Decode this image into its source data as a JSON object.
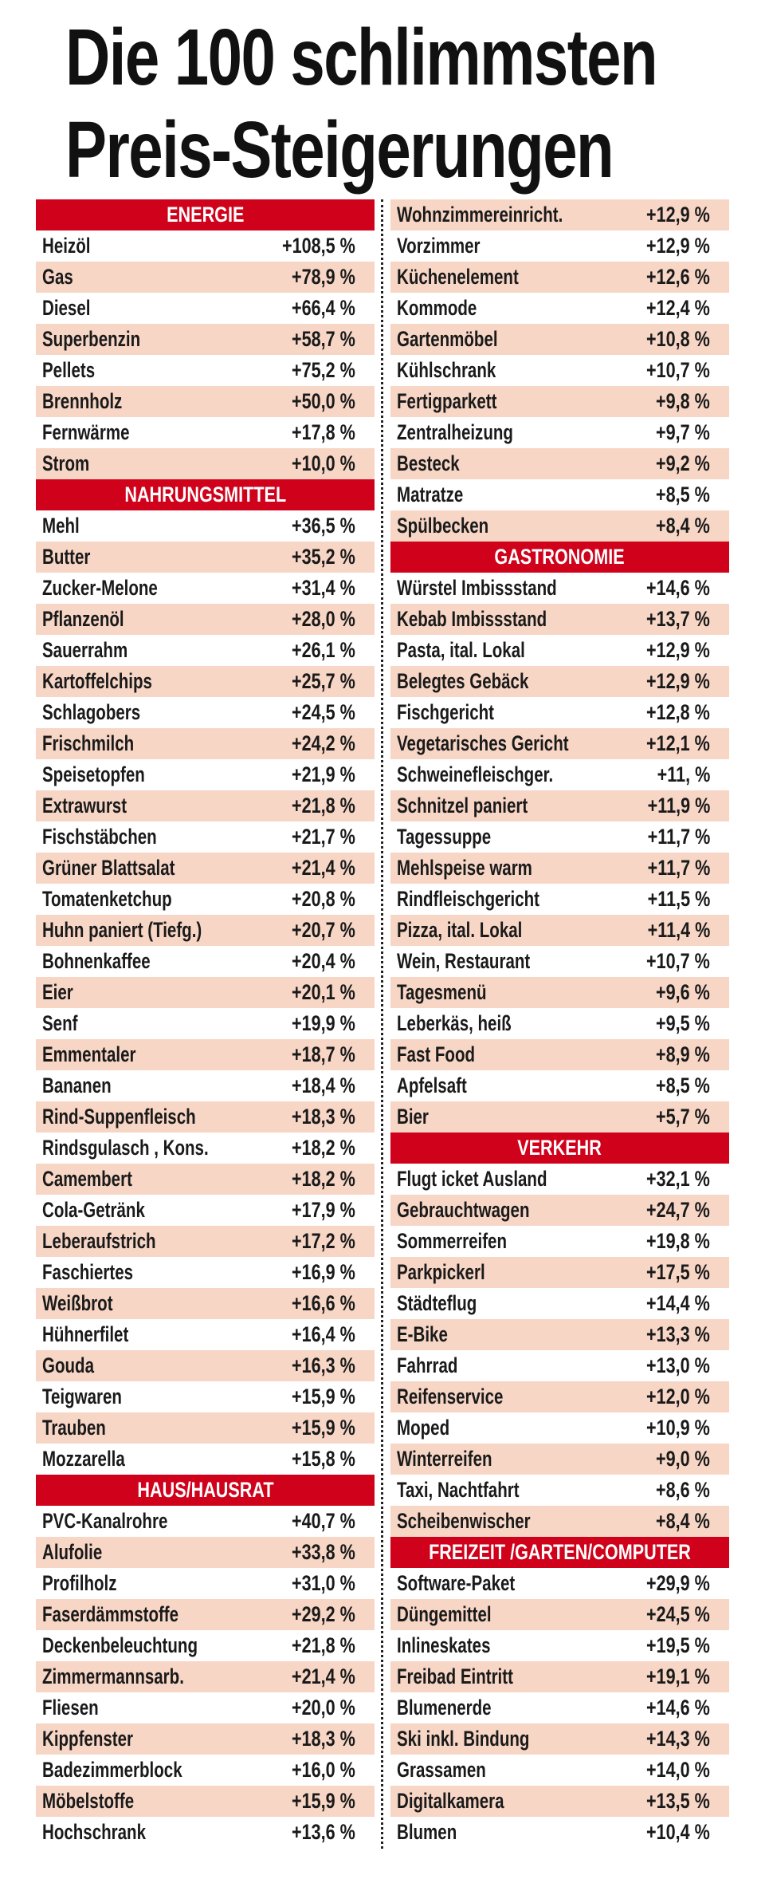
{
  "title": {
    "line1": "Die 100 schlimmsten",
    "line2": "Preis-Steigerungen"
  },
  "colors": {
    "header": "#d0021b",
    "shade": "#f7d6c6"
  },
  "sections": [
    {
      "name": "ENERGIE",
      "items": [
        {
          "label": "Heizöl",
          "value": "+108,5 %"
        },
        {
          "label": "Gas",
          "value": "+78,9 %"
        },
        {
          "label": "Diesel",
          "value": "+66,4 %"
        },
        {
          "label": "Superbenzin",
          "value": "+58,7 %"
        },
        {
          "label": "Pellets",
          "value": "+75,2 %"
        },
        {
          "label": "Brennholz",
          "value": "+50,0 %"
        },
        {
          "label": "Fernwärme",
          "value": "+17,8 %"
        },
        {
          "label": "Strom",
          "value": "+10,0 %"
        }
      ]
    },
    {
      "name": "NAHRUNGSMITTEL",
      "items": [
        {
          "label": "Mehl",
          "value": "+36,5 %"
        },
        {
          "label": "Butter",
          "value": "+35,2 %"
        },
        {
          "label": "Zucker-Melone",
          "value": "+31,4 %"
        },
        {
          "label": "Pflanzenöl",
          "value": "+28,0 %"
        },
        {
          "label": "Sauerrahm",
          "value": "+26,1 %"
        },
        {
          "label": "Kartoffelchips",
          "value": "+25,7 %"
        },
        {
          "label": "Schlagobers",
          "value": "+24,5 %"
        },
        {
          "label": "Frischmilch",
          "value": "+24,2 %"
        },
        {
          "label": "Speisetopfen",
          "value": "+21,9 %"
        },
        {
          "label": "Extrawurst",
          "value": "+21,8 %"
        },
        {
          "label": "Fischstäbchen",
          "value": "+21,7 %"
        },
        {
          "label": "Grüner Blattsalat",
          "value": "+21,4 %"
        },
        {
          "label": "Tomatenketchup",
          "value": "+20,8 %"
        },
        {
          "label": "Huhn paniert (Tiefg.)",
          "value": "+20,7 %"
        },
        {
          "label": "Bohnenkaffee",
          "value": "+20,4 %"
        },
        {
          "label": "Eier",
          "value": "+20,1 %"
        },
        {
          "label": "Senf",
          "value": "+19,9 %"
        },
        {
          "label": "Emmentaler",
          "value": "+18,7 %"
        },
        {
          "label": "Bananen",
          "value": "+18,4 %"
        },
        {
          "label": "Rind-Suppenfleisch",
          "value": "+18,3 %"
        },
        {
          "label": "Rindsgulasch , Kons.",
          "value": "+18,2 %"
        },
        {
          "label": "Camembert",
          "value": "+18,2 %"
        },
        {
          "label": "Cola-Getränk",
          "value": "+17,9 %"
        },
        {
          "label": "Leberaufstrich",
          "value": "+17,2 %"
        },
        {
          "label": "Faschiertes",
          "value": "+16,9 %"
        },
        {
          "label": "Weißbrot",
          "value": "+16,6 %"
        },
        {
          "label": "Hühnerfilet",
          "value": "+16,4 %"
        },
        {
          "label": "Gouda",
          "value": "+16,3 %"
        },
        {
          "label": "Teigwaren",
          "value": "+15,9 %"
        },
        {
          "label": "Trauben",
          "value": "+15,9 %"
        },
        {
          "label": "Mozzarella",
          "value": "+15,8 %"
        }
      ]
    },
    {
      "name": "HAUS/HAUSRAT",
      "items": [
        {
          "label": "PVC-Kanalrohre",
          "value": "+40,7 %"
        },
        {
          "label": "Alufolie",
          "value": "+33,8 %"
        },
        {
          "label": "Profilholz",
          "value": "+31,0 %"
        },
        {
          "label": "Faserdämmstoffe",
          "value": "+29,2 %"
        },
        {
          "label": "Deckenbeleuchtung",
          "value": "+21,8 %"
        },
        {
          "label": "Zimmermannsarb.",
          "value": "+21,4 %"
        },
        {
          "label": "Fliesen",
          "value": "+20,0 %"
        },
        {
          "label": "Kippfenster",
          "value": "+18,3 %"
        },
        {
          "label": "Badezimmerblock",
          "value": "+16,0 %"
        },
        {
          "label": "Möbelstoffe",
          "value": "+15,9 %"
        },
        {
          "label": "Hochschrank",
          "value": "+13,6 %"
        },
        {
          "label": "Wohnzimmereinricht.",
          "value": "+12,9 %"
        },
        {
          "label": "Vorzimmer",
          "value": "+12,9 %"
        },
        {
          "label": "Küchenelement",
          "value": "+12,6 %"
        },
        {
          "label": "Kommode",
          "value": "+12,4 %"
        },
        {
          "label": "Gartenmöbel",
          "value": "+10,8 %"
        },
        {
          "label": "Kühlschrank",
          "value": "+10,7 %"
        },
        {
          "label": "Fertigparkett",
          "value": "+9,8 %"
        },
        {
          "label": "Zentralheizung",
          "value": "+9,7 %"
        },
        {
          "label": "Besteck",
          "value": "+9,2 %"
        },
        {
          "label": "Matratze",
          "value": "+8,5 %"
        },
        {
          "label": "Spülbecken",
          "value": "+8,4 %"
        }
      ]
    },
    {
      "name": "GASTRONOMIE",
      "items": [
        {
          "label": "Würstel Imbissstand",
          "value": "+14,6 %"
        },
        {
          "label": "Kebab Imbissstand",
          "value": "+13,7 %"
        },
        {
          "label": "Pasta, ital. Lokal",
          "value": "+12,9 %"
        },
        {
          "label": "Belegtes Gebäck",
          "value": "+12,9 %"
        },
        {
          "label": "Fischgericht",
          "value": "+12,8 %"
        },
        {
          "label": "Vegetarisches Gericht",
          "value": "+12,1 %"
        },
        {
          "label": "Schweinefleischger.",
          "value": "+11, %"
        },
        {
          "label": "Schnitzel paniert",
          "value": "+11,9 %"
        },
        {
          "label": "Tagessuppe",
          "value": "+11,7 %"
        },
        {
          "label": "Mehlspeise warm",
          "value": "+11,7 %"
        },
        {
          "label": "Rindfleischgericht",
          "value": "+11,5 %"
        },
        {
          "label": "Pizza, ital. Lokal",
          "value": "+11,4 %"
        },
        {
          "label": "Wein, Restaurant",
          "value": "+10,7 %"
        },
        {
          "label": "Tagesmenü",
          "value": "+9,6 %"
        },
        {
          "label": "Leberkäs, heiß",
          "value": "+9,5 %"
        },
        {
          "label": "Fast Food",
          "value": "+8,9 %"
        },
        {
          "label": "Apfelsaft",
          "value": "+8,5 %"
        },
        {
          "label": "Bier",
          "value": "+5,7 %"
        }
      ]
    },
    {
      "name": "VERKEHR",
      "items": [
        {
          "label": "Flugt icket Ausland",
          "value": "+32,1 %"
        },
        {
          "label": "Gebrauchtwagen",
          "value": "+24,7 %"
        },
        {
          "label": "Sommerreifen",
          "value": "+19,8 %"
        },
        {
          "label": "Parkpickerl",
          "value": "+17,5 %"
        },
        {
          "label": "Städteflug",
          "value": "+14,4 %"
        },
        {
          "label": "E-Bike",
          "value": "+13,3 %"
        },
        {
          "label": "Fahrrad",
          "value": "+13,0 %"
        },
        {
          "label": "Reifenservice",
          "value": "+12,0 %"
        },
        {
          "label": "Moped",
          "value": "+10,9 %"
        },
        {
          "label": "Winterreifen",
          "value": "+9,0 %"
        },
        {
          "label": "Taxi, Nachtfahrt",
          "value": "+8,6 %"
        },
        {
          "label": "Scheibenwischer",
          "value": "+8,4 %"
        }
      ]
    },
    {
      "name": "FREIZEIT /GARTEN/COMPUTER",
      "items": [
        {
          "label": "Software-Paket",
          "value": "+29,9 %"
        },
        {
          "label": "Düngemittel",
          "value": "+24,5 %"
        },
        {
          "label": "Inlineskates",
          "value": "+19,5 %"
        },
        {
          "label": "Freibad Eintritt",
          "value": "+19,1 %"
        },
        {
          "label": "Blumenerde",
          "value": "+14,6 %"
        },
        {
          "label": "Ski inkl. Bindung",
          "value": "+14,3 %"
        },
        {
          "label": "Grassamen",
          "value": "+14,0 %"
        },
        {
          "label": "Digitalkamera",
          "value": "+13,5 %"
        },
        {
          "label": "Blumen",
          "value": "+10,4 %"
        }
      ]
    }
  ]
}
